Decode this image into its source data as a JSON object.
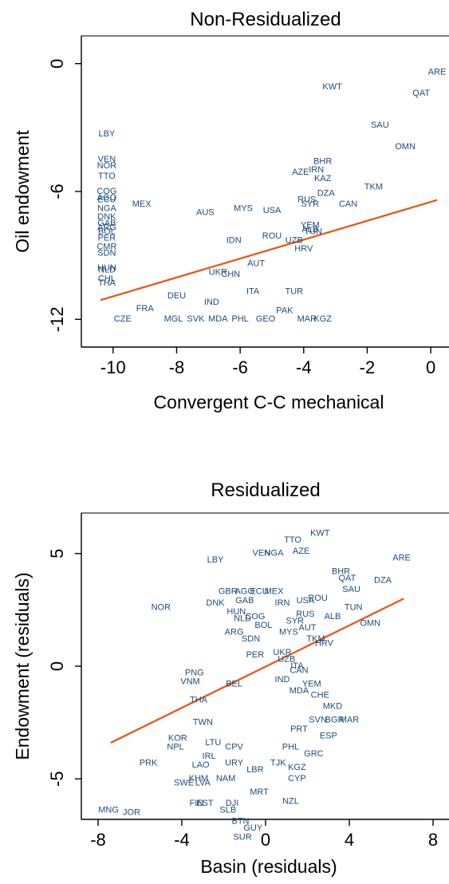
{
  "chart_data": [
    {
      "type": "scatter",
      "title": "Non-Residualized",
      "xlabel": "Convergent C-C mechanical",
      "ylabel": "Oil endowment",
      "xlim": [
        -11,
        0.6
      ],
      "ylim": [
        -13.3,
        1.3
      ],
      "xticks": [
        -10,
        -8,
        -6,
        -4,
        -2,
        0
      ],
      "yticks": [
        0,
        -6,
        -12
      ],
      "colors": {
        "points": "#1e4d7a",
        "fit": "#f0500f"
      },
      "fit_line": {
        "x": [
          -10.4,
          0.2
        ],
        "y": [
          -11.1,
          -6.4
        ]
      },
      "points": [
        {
          "label": "ARE",
          "x": 0.2,
          "y": -0.4
        },
        {
          "label": "QAT",
          "x": -0.3,
          "y": -1.4
        },
        {
          "label": "KWT",
          "x": -3.1,
          "y": -1.1
        },
        {
          "label": "SAU",
          "x": -1.6,
          "y": -2.9
        },
        {
          "label": "OMN",
          "x": -0.8,
          "y": -3.9
        },
        {
          "label": "LBY",
          "x": -10.2,
          "y": -3.3
        },
        {
          "label": "VEN",
          "x": -10.2,
          "y": -4.5
        },
        {
          "label": "NOR",
          "x": -10.2,
          "y": -4.8
        },
        {
          "label": "TTO",
          "x": -10.2,
          "y": -5.3
        },
        {
          "label": "BHR",
          "x": -3.4,
          "y": -4.6
        },
        {
          "label": "AZE",
          "x": -4.1,
          "y": -5.1
        },
        {
          "label": "IRN",
          "x": -3.6,
          "y": -5.0
        },
        {
          "label": "KAZ",
          "x": -3.4,
          "y": -5.4
        },
        {
          "label": "TKM",
          "x": -1.8,
          "y": -5.8
        },
        {
          "label": "COG",
          "x": -10.2,
          "y": -6.0
        },
        {
          "label": "AGO",
          "x": -10.2,
          "y": -6.3
        },
        {
          "label": "ECU",
          "x": -10.2,
          "y": -6.4
        },
        {
          "label": "NGA",
          "x": -10.2,
          "y": -6.8
        },
        {
          "label": "MEX",
          "x": -9.1,
          "y": -6.6
        },
        {
          "label": "DZA",
          "x": -3.3,
          "y": -6.1
        },
        {
          "label": "RUS",
          "x": -3.9,
          "y": -6.4
        },
        {
          "label": "SYR",
          "x": -3.8,
          "y": -6.6
        },
        {
          "label": "CAN",
          "x": -2.6,
          "y": -6.6
        },
        {
          "label": "AUS",
          "x": -7.1,
          "y": -7.0
        },
        {
          "label": "MYS",
          "x": -5.9,
          "y": -6.8
        },
        {
          "label": "USA",
          "x": -5.0,
          "y": -6.9
        },
        {
          "label": "DNK",
          "x": -10.2,
          "y": -7.2
        },
        {
          "label": "GAB",
          "x": -10.2,
          "y": -7.5
        },
        {
          "label": "ARG",
          "x": -10.2,
          "y": -7.7
        },
        {
          "label": "BOL",
          "x": -10.2,
          "y": -7.9
        },
        {
          "label": "PER",
          "x": -10.2,
          "y": -8.2
        },
        {
          "label": "CMR",
          "x": -10.2,
          "y": -8.6
        },
        {
          "label": "SDN",
          "x": -10.2,
          "y": -8.9
        },
        {
          "label": "YEM",
          "x": -3.8,
          "y": -7.6
        },
        {
          "label": "ALB",
          "x": -3.8,
          "y": -7.8
        },
        {
          "label": "TUN",
          "x": -3.7,
          "y": -7.9
        },
        {
          "label": "IDN",
          "x": -6.2,
          "y": -8.3
        },
        {
          "label": "ROU",
          "x": -5.0,
          "y": -8.1
        },
        {
          "label": "UZB",
          "x": -4.3,
          "y": -8.3
        },
        {
          "label": "HRV",
          "x": -4.0,
          "y": -8.7
        },
        {
          "label": "HUN",
          "x": -10.2,
          "y": -9.6
        },
        {
          "label": "NLD",
          "x": -10.2,
          "y": -9.7
        },
        {
          "label": "CHL",
          "x": -10.2,
          "y": -10.1
        },
        {
          "label": "THA",
          "x": -10.2,
          "y": -10.3
        },
        {
          "label": "AUT",
          "x": -5.5,
          "y": -9.4
        },
        {
          "label": "UKR",
          "x": -6.7,
          "y": -9.8
        },
        {
          "label": "CHN",
          "x": -6.3,
          "y": -9.9
        },
        {
          "label": "ITA",
          "x": -5.6,
          "y": -10.7
        },
        {
          "label": "TUR",
          "x": -4.3,
          "y": -10.7
        },
        {
          "label": "DEU",
          "x": -8.0,
          "y": -10.9
        },
        {
          "label": "IND",
          "x": -6.9,
          "y": -11.2
        },
        {
          "label": "FRA",
          "x": -9.0,
          "y": -11.5
        },
        {
          "label": "PAK",
          "x": -4.6,
          "y": -11.6
        },
        {
          "label": "CZE",
          "x": -9.7,
          "y": -12.0
        },
        {
          "label": "MGL",
          "x": -8.1,
          "y": -12.0
        },
        {
          "label": "SVK",
          "x": -7.4,
          "y": -12.0
        },
        {
          "label": "MDA",
          "x": -6.7,
          "y": -12.0
        },
        {
          "label": "PHL",
          "x": -6.0,
          "y": -12.0
        },
        {
          "label": "GEO",
          "x": -5.2,
          "y": -12.0
        },
        {
          "label": "MAR",
          "x": -3.9,
          "y": -12.0
        },
        {
          "label": "KGZ",
          "x": -3.4,
          "y": -12.0
        }
      ]
    },
    {
      "type": "scatter",
      "title": "Residualized",
      "xlabel": "Basin (residuals)",
      "ylabel": "Endowment (residuals)",
      "xlim": [
        -8.8,
        8.8
      ],
      "ylim": [
        -6.8,
        6.8
      ],
      "xticks": [
        -8,
        -4,
        0,
        4,
        8
      ],
      "yticks": [
        5,
        0,
        -5
      ],
      "colors": {
        "points": "#1e4d7a",
        "fit": "#f0500f"
      },
      "fit_line": {
        "x": [
          -7.4,
          6.6
        ],
        "y": [
          -3.4,
          3.0
        ]
      },
      "points": [
        {
          "label": "KWT",
          "x": 2.6,
          "y": 5.9
        },
        {
          "label": "TTO",
          "x": 1.3,
          "y": 5.6
        },
        {
          "label": "VEN",
          "x": -0.2,
          "y": 5.0
        },
        {
          "label": "NGA",
          "x": 0.4,
          "y": 5.0
        },
        {
          "label": "AZE",
          "x": 1.7,
          "y": 5.1
        },
        {
          "label": "LBY",
          "x": -2.4,
          "y": 4.7
        },
        {
          "label": "ARE",
          "x": 6.5,
          "y": 4.8
        },
        {
          "label": "BHR",
          "x": 3.6,
          "y": 4.2
        },
        {
          "label": "QAT",
          "x": 3.9,
          "y": 3.9
        },
        {
          "label": "DZA",
          "x": 5.6,
          "y": 3.8
        },
        {
          "label": "GBR",
          "x": -1.8,
          "y": 3.3
        },
        {
          "label": "AGO",
          "x": -1.0,
          "y": 3.3
        },
        {
          "label": "ECU",
          "x": -0.3,
          "y": 3.3
        },
        {
          "label": "MEX",
          "x": 0.4,
          "y": 3.3
        },
        {
          "label": "DNK",
          "x": -2.4,
          "y": 2.8
        },
        {
          "label": "GAB",
          "x": -1.0,
          "y": 2.9
        },
        {
          "label": "IRN",
          "x": 0.8,
          "y": 2.8
        },
        {
          "label": "USA",
          "x": 1.9,
          "y": 2.9
        },
        {
          "label": "ROU",
          "x": 2.5,
          "y": 3.0
        },
        {
          "label": "SAU",
          "x": 4.1,
          "y": 3.4
        },
        {
          "label": "NOR",
          "x": -5.0,
          "y": 2.6
        },
        {
          "label": "TUN",
          "x": 4.2,
          "y": 2.6
        },
        {
          "label": "HUN",
          "x": -1.4,
          "y": 2.4
        },
        {
          "label": "NLD",
          "x": -1.1,
          "y": 2.1
        },
        {
          "label": "COG",
          "x": -0.5,
          "y": 2.2
        },
        {
          "label": "SYR",
          "x": 1.4,
          "y": 2.0
        },
        {
          "label": "RUS",
          "x": 1.9,
          "y": 2.3
        },
        {
          "label": "ALB",
          "x": 3.2,
          "y": 2.2
        },
        {
          "label": "OMN",
          "x": 5.0,
          "y": 1.9
        },
        {
          "label": "BOL",
          "x": -0.1,
          "y": 1.8
        },
        {
          "label": "AUT",
          "x": 2.0,
          "y": 1.7
        },
        {
          "label": "MYS",
          "x": 1.1,
          "y": 1.5
        },
        {
          "label": "ARG",
          "x": -1.5,
          "y": 1.5
        },
        {
          "label": "SDN",
          "x": -0.7,
          "y": 1.2
        },
        {
          "label": "HRV",
          "x": 2.8,
          "y": 1.0
        },
        {
          "label": "TKM",
          "x": 2.4,
          "y": 1.2
        },
        {
          "label": "PER",
          "x": -0.5,
          "y": 0.5
        },
        {
          "label": "UKR",
          "x": 0.8,
          "y": 0.6
        },
        {
          "label": "UZB",
          "x": 1.0,
          "y": 0.3
        },
        {
          "label": "PNG",
          "x": -3.4,
          "y": -0.3
        },
        {
          "label": "VNM",
          "x": -3.6,
          "y": -0.7
        },
        {
          "label": "IND",
          "x": 0.8,
          "y": -0.6
        },
        {
          "label": "YEM",
          "x": 2.2,
          "y": -0.8
        },
        {
          "label": "CAN",
          "x": 1.6,
          "y": -0.2
        },
        {
          "label": "ITA",
          "x": 1.5,
          "y": 0.0
        },
        {
          "label": "MDA",
          "x": 1.6,
          "y": -1.1
        },
        {
          "label": "CHE",
          "x": 2.6,
          "y": -1.3
        },
        {
          "label": "THA",
          "x": -3.2,
          "y": -1.5
        },
        {
          "label": "BEL",
          "x": -1.5,
          "y": -0.8
        },
        {
          "label": "MKD",
          "x": 3.2,
          "y": -1.8
        },
        {
          "label": "SVN",
          "x": 2.5,
          "y": -2.4
        },
        {
          "label": "BGR",
          "x": 3.3,
          "y": -2.4
        },
        {
          "label": "MAR",
          "x": 4.0,
          "y": -2.4
        },
        {
          "label": "TWN",
          "x": -3.0,
          "y": -2.5
        },
        {
          "label": "PRT",
          "x": 1.6,
          "y": -2.8
        },
        {
          "label": "ESP",
          "x": 3.0,
          "y": -3.1
        },
        {
          "label": "KOR",
          "x": -4.2,
          "y": -3.2
        },
        {
          "label": "LTU",
          "x": -2.5,
          "y": -3.4
        },
        {
          "label": "PHL",
          "x": 1.2,
          "y": -3.6
        },
        {
          "label": "GRC",
          "x": 2.3,
          "y": -3.9
        },
        {
          "label": "NPL",
          "x": -4.3,
          "y": -3.6
        },
        {
          "label": "IRL",
          "x": -2.7,
          "y": -4.0
        },
        {
          "label": "CPV",
          "x": -1.5,
          "y": -3.6
        },
        {
          "label": "PRK",
          "x": -5.6,
          "y": -4.3
        },
        {
          "label": "LAO",
          "x": -3.1,
          "y": -4.4
        },
        {
          "label": "URY",
          "x": -1.5,
          "y": -4.3
        },
        {
          "label": "NAM",
          "x": -1.9,
          "y": -5.0
        },
        {
          "label": "LBR",
          "x": -0.5,
          "y": -4.6
        },
        {
          "label": "TJK",
          "x": 0.6,
          "y": -4.3
        },
        {
          "label": "KGZ",
          "x": 1.5,
          "y": -4.5
        },
        {
          "label": "CYP",
          "x": 1.5,
          "y": -5.0
        },
        {
          "label": "SWE",
          "x": -3.9,
          "y": -5.2
        },
        {
          "label": "LVA",
          "x": -3.0,
          "y": -5.2
        },
        {
          "label": "KHM",
          "x": -3.2,
          "y": -5.0
        },
        {
          "label": "MRT",
          "x": -0.3,
          "y": -5.6
        },
        {
          "label": "NZL",
          "x": 1.2,
          "y": -6.0
        },
        {
          "label": "FIN",
          "x": -3.3,
          "y": -6.1
        },
        {
          "label": "EST",
          "x": -2.9,
          "y": -6.1
        },
        {
          "label": "DJI",
          "x": -1.6,
          "y": -6.1
        },
        {
          "label": "SLB",
          "x": -1.8,
          "y": -6.4
        },
        {
          "label": "BTN",
          "x": -1.2,
          "y": -6.9
        },
        {
          "label": "GUY",
          "x": -0.6,
          "y": -7.2
        },
        {
          "label": "SUR",
          "x": -1.1,
          "y": -7.6
        },
        {
          "label": "MNG",
          "x": -7.5,
          "y": -6.4
        },
        {
          "label": "JOR",
          "x": -6.4,
          "y": -6.5
        }
      ]
    }
  ]
}
